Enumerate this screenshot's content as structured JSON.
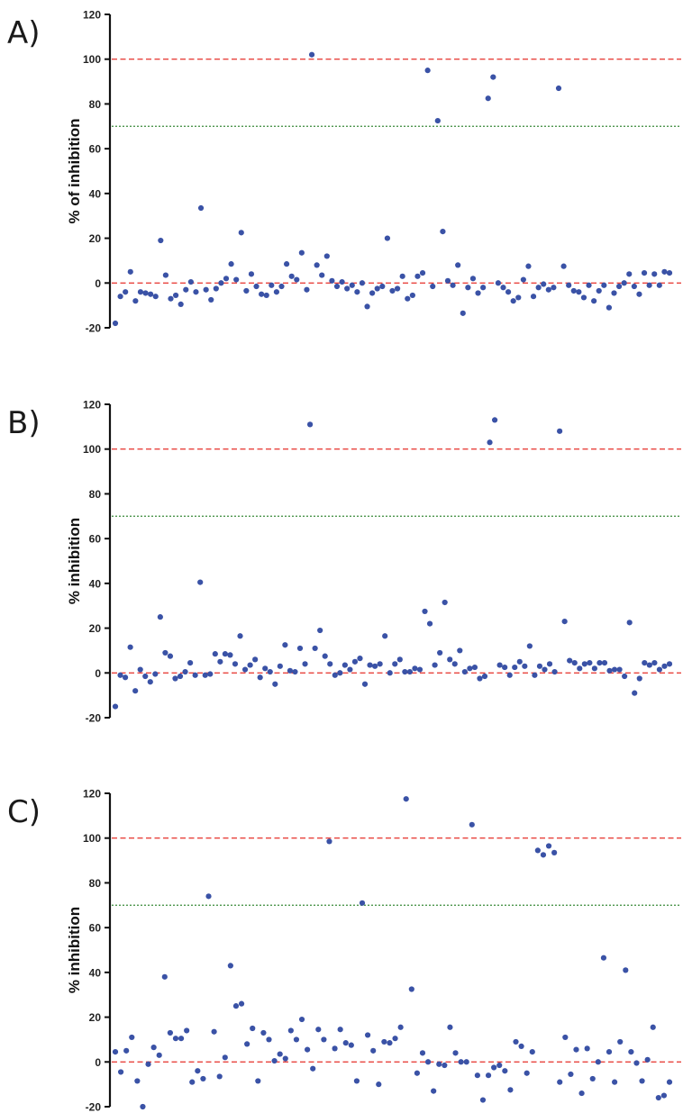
{
  "chart_data": [
    {
      "type": "scatter",
      "panel_label": "A)",
      "ylabel": "% of inhibition",
      "ylim": [
        -20,
        120
      ],
      "yticks": [
        "-20",
        "0",
        "20",
        "40",
        "60",
        "80",
        "100",
        "120"
      ],
      "reference_lines": [
        {
          "y": 100,
          "color": "#e8423c",
          "style": "dashed"
        },
        {
          "y": 70,
          "color": "#3a8a3a",
          "style": "dotted"
        },
        {
          "y": 0,
          "color": "#e8423c",
          "style": "dashed"
        }
      ],
      "marker_color": "#3a52a6",
      "values": [
        -18,
        -6,
        -4,
        5,
        -8,
        -4,
        -4.5,
        -5,
        -6,
        19,
        3.5,
        -7,
        -5.5,
        -9.5,
        -3,
        0.5,
        -4,
        33.5,
        -3,
        -7.5,
        -2.5,
        0,
        2,
        8.5,
        1.5,
        22.5,
        -3.5,
        4,
        -1.5,
        -5,
        -5.5,
        -1,
        -4,
        -1.5,
        8.5,
        3,
        1.5,
        13.5,
        -3,
        102,
        8,
        3.5,
        12,
        1,
        -1.5,
        0.5,
        -2.5,
        -1,
        -4,
        0,
        -10.5,
        -4.5,
        -2.5,
        -1.5,
        20,
        -3.5,
        -2.5,
        3,
        -7,
        -5.5,
        3,
        4.5,
        95,
        -1.5,
        72.5,
        23,
        1,
        -1,
        8,
        -13.5,
        -2,
        2,
        -4.5,
        -2,
        82.5,
        92,
        0,
        -2,
        -4,
        -8,
        -6.5,
        1.5,
        7.5,
        -6,
        -2,
        -0.5,
        -3,
        -2,
        87,
        7.5,
        -1,
        -3.5,
        -4,
        -6.5,
        -1,
        -8,
        -3.5,
        -1,
        -11,
        -4.5,
        -1.5,
        0,
        4,
        -1.5,
        -5,
        4.5,
        -1,
        4,
        -1,
        5,
        4.5
      ]
    },
    {
      "type": "scatter",
      "panel_label": "B)",
      "ylabel": "% inhibition",
      "ylim": [
        -20,
        120
      ],
      "yticks": [
        "-20",
        "0",
        "20",
        "40",
        "60",
        "80",
        "100",
        "120"
      ],
      "reference_lines": [
        {
          "y": 100,
          "color": "#e8423c",
          "style": "dashed"
        },
        {
          "y": 70,
          "color": "#3a8a3a",
          "style": "dotted"
        },
        {
          "y": 0,
          "color": "#e8423c",
          "style": "dashed"
        }
      ],
      "marker_color": "#3a52a6",
      "values": [
        -15,
        -1,
        -2,
        11.5,
        -8,
        1.5,
        -1.5,
        -4,
        -0.5,
        25,
        9,
        7.5,
        -2.5,
        -1.5,
        0.5,
        4.5,
        -1,
        40.5,
        -1,
        -0.5,
        8.5,
        5,
        8.5,
        8,
        4,
        16.5,
        1.5,
        3.5,
        6,
        -2,
        2,
        0.5,
        -5,
        3,
        12.5,
        1,
        0.5,
        11,
        4,
        111,
        11,
        19,
        7.5,
        4,
        -1,
        0,
        3.5,
        1.5,
        5,
        6.5,
        -5,
        3.5,
        3,
        4,
        16.5,
        0,
        4,
        6,
        0.5,
        0.5,
        2,
        1.5,
        27.5,
        22,
        3.5,
        9,
        31.5,
        6,
        4,
        10,
        0.5,
        2,
        2.5,
        -2.5,
        -1.5,
        103,
        113,
        3.5,
        2.5,
        -1,
        2.5,
        5,
        3,
        12,
        -1,
        3,
        1.5,
        4,
        0.5,
        108,
        23,
        5.5,
        4.5,
        2,
        4,
        4.5,
        2,
        4.5,
        4.5,
        1,
        1.5,
        1.5,
        -1.5,
        22.5,
        -9,
        -2.5,
        4.5,
        3.5,
        4.5,
        1.5,
        3,
        4
      ]
    },
    {
      "type": "scatter",
      "panel_label": "C)",
      "ylabel": "% inhibition",
      "ylim": [
        -20,
        120
      ],
      "yticks": [
        "-20",
        "0",
        "20",
        "40",
        "60",
        "80",
        "100",
        "120"
      ],
      "reference_lines": [
        {
          "y": 100,
          "color": "#e8423c",
          "style": "dashed"
        },
        {
          "y": 70,
          "color": "#3a8a3a",
          "style": "dotted"
        },
        {
          "y": 0,
          "color": "#e8423c",
          "style": "dashed"
        }
      ],
      "marker_color": "#3a52a6",
      "values": [
        4.5,
        -4.5,
        5,
        11,
        -8.5,
        -20,
        -1,
        6.5,
        3,
        38,
        13,
        10.5,
        10.5,
        14,
        -9,
        -4,
        -7.5,
        74,
        13.5,
        -6.5,
        2,
        43,
        25,
        26,
        8,
        15,
        -8.5,
        13,
        10,
        0.5,
        3.5,
        1.5,
        14,
        10,
        19,
        5.5,
        -3,
        14.5,
        10,
        98.5,
        6,
        14.5,
        8.5,
        7.5,
        -8.5,
        71,
        12,
        5,
        -10,
        9,
        8.5,
        10.5,
        15.5,
        117.5,
        32.5,
        -5,
        4,
        0,
        -13,
        -1,
        -1.5,
        15.5,
        4,
        0,
        0,
        106,
        -6,
        -17,
        -6,
        -2.5,
        -1.5,
        -4,
        -12.5,
        9,
        7,
        -5,
        4.5,
        94.5,
        92.5,
        96.5,
        93.5,
        -9,
        11,
        -5.5,
        5.5,
        -14,
        6,
        -7.5,
        0,
        46.5,
        4.5,
        -9,
        9,
        41,
        4.5,
        -0.5,
        -8.5,
        1,
        15.5,
        -16,
        -15,
        -9
      ]
    }
  ]
}
